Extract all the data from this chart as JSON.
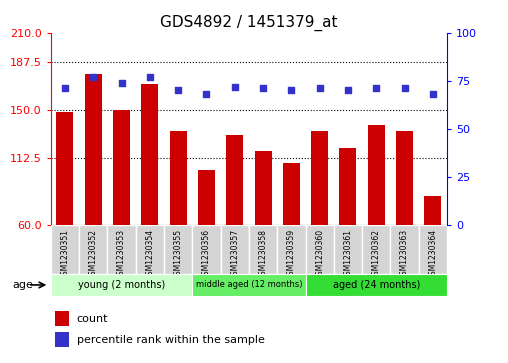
{
  "title": "GDS4892 / 1451379_at",
  "samples": [
    "GSM1230351",
    "GSM1230352",
    "GSM1230353",
    "GSM1230354",
    "GSM1230355",
    "GSM1230356",
    "GSM1230357",
    "GSM1230358",
    "GSM1230359",
    "GSM1230360",
    "GSM1230361",
    "GSM1230362",
    "GSM1230363",
    "GSM1230364"
  ],
  "counts": [
    148,
    178,
    150,
    170,
    133,
    103,
    130,
    118,
    108,
    133,
    120,
    138,
    133,
    83
  ],
  "percentiles": [
    71,
    77,
    74,
    77,
    70,
    68,
    72,
    71,
    70,
    71,
    70,
    71,
    71,
    68
  ],
  "ylim_left": [
    60,
    210
  ],
  "ylim_right": [
    0,
    100
  ],
  "yticks_left": [
    60,
    112.5,
    150,
    187.5,
    210
  ],
  "yticks_right": [
    0,
    25,
    50,
    75,
    100
  ],
  "hlines": [
    112.5,
    150,
    187.5
  ],
  "bar_color": "#cc0000",
  "dot_color": "#3333cc",
  "groups": [
    {
      "label": "young (2 months)",
      "start": 0,
      "end": 5,
      "color": "#ccffcc"
    },
    {
      "label": "middle aged (12 months)",
      "start": 5,
      "end": 9,
      "color": "#66ee66"
    },
    {
      "label": "aged (24 months)",
      "start": 9,
      "end": 14,
      "color": "#33dd33"
    }
  ],
  "age_label": "age",
  "legend_count": "count",
  "legend_percentile": "percentile rank within the sample",
  "title_fontsize": 11,
  "tick_fontsize": 8,
  "label_fontsize": 7
}
